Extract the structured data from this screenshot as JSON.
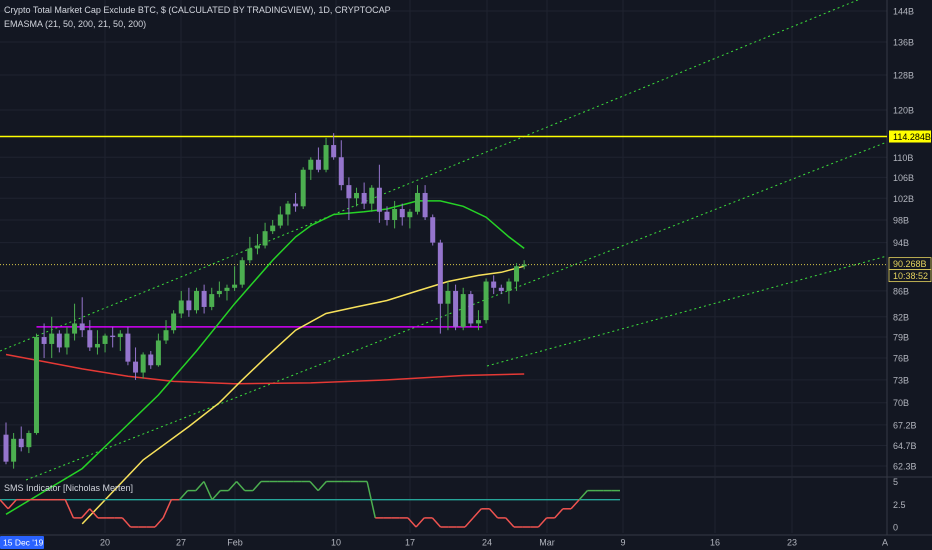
{
  "header": {
    "title": "Crypto Total Market Cap Exclude BTC, $ (CALCULATED BY TRADINGVIEW), 1D, CRYPTOCAP",
    "indicator": "EMASMA (21, 50, 200, 21, 50, 200)"
  },
  "lower_indicator": {
    "title": "SMS Indicator [Nicholas Merten]"
  },
  "colors": {
    "background": "#131722",
    "grid": "#1f2330",
    "up": "#4caf50",
    "down": "#9575cd",
    "ema21": "#26d326",
    "sma50": "#f7e15b",
    "sma200": "#e53935",
    "resistance": "#ffff00",
    "support": "#d500f9",
    "channel": "#3ce03c",
    "sms_high": "#4caf50",
    "sms_low": "#ef5350",
    "sms_ref": "#26a69a"
  },
  "price_scale": {
    "ticks": [
      "144B",
      "136B",
      "128B",
      "120B",
      "114.284B",
      "110B",
      "106B",
      "102B",
      "98B",
      "94B",
      "90.268B",
      "10:38:52",
      "86B",
      "82B",
      "79B",
      "76B",
      "73B",
      "70B",
      "67.2B",
      "64.7B",
      "62.3B"
    ]
  },
  "sms_scale": {
    "ticks": [
      "5",
      "2.5",
      "0"
    ]
  },
  "time_scale": {
    "ticks": [
      "15 Dec '19",
      "20",
      "27",
      "Feb",
      "10",
      "17",
      "24",
      "Mar",
      "9",
      "16",
      "23",
      "A"
    ]
  },
  "chart_data": [
    {
      "type": "candlestick",
      "title": "Crypto Total Market Cap Exclude BTC, $ (CALCULATED BY TRADINGVIEW), 1D, CRYPTOCAP",
      "unit": "B",
      "ylim": [
        61,
        146
      ],
      "last_price": 90.268,
      "countdown": "10:38:52",
      "resistance_level": 114.284,
      "support_level": 80.5,
      "candles": [
        [
          66.0,
          67.5,
          62.5,
          62.8
        ],
        [
          62.8,
          66.2,
          62.0,
          65.5
        ],
        [
          65.5,
          67.0,
          64.0,
          64.5
        ],
        [
          64.5,
          66.5,
          63.8,
          66.2
        ],
        [
          66.2,
          79.5,
          66.0,
          79.0
        ],
        [
          79.0,
          81.0,
          76.0,
          78.0
        ],
        [
          78.0,
          82.0,
          76.0,
          79.5
        ],
        [
          79.5,
          80.0,
          76.8,
          77.5
        ],
        [
          77.5,
          80.5,
          76.5,
          79.5
        ],
        [
          79.5,
          84.0,
          78.5,
          81.0
        ],
        [
          81.0,
          85.0,
          79.0,
          80.0
        ],
        [
          80.0,
          81.5,
          77.0,
          77.5
        ],
        [
          77.5,
          80.0,
          76.5,
          78.0
        ],
        [
          78.0,
          79.5,
          76.8,
          79.2
        ],
        [
          79.2,
          80.5,
          77.5,
          79.0
        ],
        [
          79.0,
          80.0,
          77.0,
          79.5
        ],
        [
          79.5,
          80.5,
          75.0,
          75.5
        ],
        [
          75.5,
          77.5,
          73.0,
          74.0
        ],
        [
          74.0,
          76.8,
          73.2,
          76.5
        ],
        [
          76.5,
          77.0,
          74.5,
          75.0
        ],
        [
          75.0,
          79.5,
          74.8,
          78.5
        ],
        [
          78.5,
          81.5,
          78.0,
          80.0
        ],
        [
          80.0,
          83.0,
          79.5,
          82.5
        ],
        [
          82.5,
          86.0,
          81.8,
          84.5
        ],
        [
          84.5,
          86.5,
          82.0,
          83.0
        ],
        [
          83.0,
          86.5,
          82.5,
          86.0
        ],
        [
          86.0,
          87.0,
          82.5,
          83.5
        ],
        [
          83.5,
          86.5,
          83.0,
          85.5
        ],
        [
          85.5,
          87.5,
          85.0,
          86.0
        ],
        [
          86.0,
          87.0,
          84.5,
          86.5
        ],
        [
          86.5,
          90.0,
          86.0,
          87.0
        ],
        [
          87.0,
          91.5,
          86.5,
          91.0
        ],
        [
          91.0,
          95.0,
          90.5,
          93.0
        ],
        [
          93.0,
          95.5,
          92.0,
          93.5
        ],
        [
          93.5,
          97.5,
          93.0,
          96.0
        ],
        [
          96.0,
          98.0,
          95.5,
          97.0
        ],
        [
          97.0,
          100.5,
          96.5,
          99.0
        ],
        [
          99.0,
          101.5,
          97.0,
          101.0
        ],
        [
          101.0,
          103.0,
          99.5,
          100.5
        ],
        [
          100.5,
          108.0,
          100.0,
          107.5
        ],
        [
          107.5,
          110.0,
          105.5,
          109.5
        ],
        [
          109.5,
          112.0,
          107.0,
          107.5
        ],
        [
          107.5,
          114.0,
          107.0,
          112.5
        ],
        [
          112.5,
          115.0,
          109.5,
          110.0
        ],
        [
          110.0,
          113.5,
          103.5,
          104.5
        ],
        [
          104.5,
          106.0,
          98.0,
          102.0
        ],
        [
          102.0,
          104.0,
          100.5,
          103.0
        ],
        [
          103.0,
          105.0,
          100.0,
          101.0
        ],
        [
          101.0,
          104.5,
          99.5,
          104.0
        ],
        [
          104.0,
          108.5,
          97.5,
          99.5
        ],
        [
          99.5,
          100.5,
          97.0,
          98.0
        ],
        [
          98.0,
          101.5,
          96.5,
          100.0
        ],
        [
          100.0,
          101.0,
          97.0,
          98.5
        ],
        [
          98.5,
          100.0,
          96.5,
          99.5
        ],
        [
          99.5,
          104.5,
          99.0,
          103.0
        ],
        [
          103.0,
          104.5,
          98.0,
          98.5
        ],
        [
          98.5,
          99.0,
          93.5,
          94.0
        ],
        [
          94.0,
          94.5,
          79.5,
          84.0
        ],
        [
          84.0,
          87.5,
          80.0,
          86.0
        ],
        [
          86.0,
          87.0,
          80.0,
          80.5
        ],
        [
          80.5,
          86.5,
          80.0,
          85.5
        ],
        [
          85.5,
          86.0,
          80.5,
          81.0
        ],
        [
          81.0,
          83.0,
          80.0,
          81.5
        ],
        [
          81.5,
          88.0,
          81.0,
          87.5
        ],
        [
          87.5,
          88.5,
          85.5,
          86.5
        ],
        [
          86.5,
          87.0,
          85.5,
          86.0
        ],
        [
          86.0,
          88.0,
          84.0,
          87.5
        ],
        [
          87.5,
          90.5,
          86.0,
          90.0
        ],
        [
          90.0,
          91.0,
          89.5,
          90.268
        ]
      ],
      "ema21": [
        [
          0,
          57
        ],
        [
          10,
          62
        ],
        [
          20,
          71
        ],
        [
          25,
          77
        ],
        [
          30,
          84
        ],
        [
          35,
          91
        ],
        [
          38,
          95
        ],
        [
          40,
          97
        ],
        [
          43,
          99
        ],
        [
          47,
          99.5
        ],
        [
          50,
          100
        ],
        [
          54,
          101.5
        ],
        [
          57,
          101.5
        ],
        [
          60,
          100.5
        ],
        [
          63,
          98.5
        ],
        [
          66,
          95
        ],
        [
          68,
          93
        ]
      ],
      "sma50": [
        [
          10,
          56
        ],
        [
          18,
          63
        ],
        [
          24,
          67
        ],
        [
          28,
          70
        ],
        [
          31,
          73
        ],
        [
          34,
          76
        ],
        [
          38,
          80
        ],
        [
          42,
          82.5
        ],
        [
          46,
          83.5
        ],
        [
          50,
          84.5
        ],
        [
          54,
          86
        ],
        [
          58,
          87.5
        ],
        [
          62,
          88.5
        ],
        [
          65,
          89
        ],
        [
          68,
          90
        ]
      ],
      "sma200": [
        [
          0,
          76.5
        ],
        [
          5,
          75.5
        ],
        [
          10,
          74.5
        ],
        [
          16,
          73.5
        ],
        [
          22,
          72.8
        ],
        [
          30,
          72.5
        ],
        [
          40,
          72.6
        ],
        [
          50,
          73.0
        ],
        [
          60,
          73.6
        ],
        [
          68,
          73.8
        ]
      ]
    },
    {
      "type": "line",
      "title": "SMS Indicator [Nicholas Merten]",
      "ylim": [
        -0.5,
        5.5
      ],
      "reference": 3,
      "values": [
        3,
        2,
        3,
        3,
        3,
        3,
        3,
        3,
        3,
        1,
        1,
        2,
        1,
        1,
        1,
        1,
        0,
        0,
        0,
        0,
        1,
        3,
        3,
        4,
        4,
        5,
        3,
        4,
        4,
        5,
        4,
        4,
        5,
        5,
        5,
        5,
        5,
        5,
        5,
        4,
        5,
        5,
        5,
        5,
        5,
        5,
        1,
        1,
        1,
        1,
        1,
        0,
        1,
        1,
        0,
        0,
        0,
        0,
        1,
        2,
        2,
        1,
        1,
        0,
        0,
        0,
        0,
        1,
        1,
        2,
        2,
        3,
        4,
        4,
        4,
        4,
        4
      ]
    }
  ]
}
